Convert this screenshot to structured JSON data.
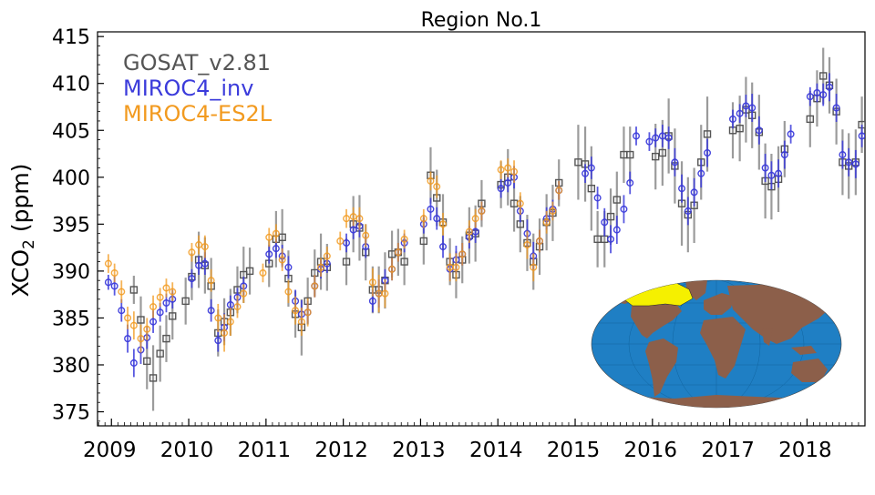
{
  "chart_data": {
    "type": "scatter",
    "title": "Region No.1",
    "xlabel": "",
    "ylabel_main": "XCO",
    "ylabel_sub": "2",
    "ylabel_unit": " (ppm)",
    "xlim": [
      2008.82,
      2018.75
    ],
    "ylim": [
      373.5,
      415.5
    ],
    "yticks": [
      375,
      380,
      385,
      390,
      395,
      400,
      405,
      410,
      415
    ],
    "xticks": [
      {
        "label": "2009",
        "pos": 2009.0
      },
      {
        "label": "2010",
        "pos": 2010.0
      },
      {
        "label": "2011",
        "pos": 2011.0
      },
      {
        "label": "2012",
        "pos": 2012.0
      },
      {
        "label": "2013",
        "pos": 2013.0
      },
      {
        "label": "2014",
        "pos": 2014.0
      },
      {
        "label": "2015",
        "pos": 2015.0
      },
      {
        "label": "2016",
        "pos": 2016.0
      },
      {
        "label": "2017",
        "pos": 2017.0
      },
      {
        "label": "2018",
        "pos": 2018.0
      }
    ],
    "legend": [
      {
        "label": "GOSAT_v2.81",
        "color": "#555555"
      },
      {
        "label": "MIROC4_inv",
        "color": "#3b3bdb"
      },
      {
        "label": "MIROC4-ES2L",
        "color": "#f29a1f"
      }
    ],
    "series": [
      {
        "name": "GOSAT_v2.81",
        "marker": "square",
        "color": "#555555",
        "x": [
          2009.29,
          2009.38,
          2009.46,
          2009.54,
          2009.63,
          2009.71,
          2009.79,
          2009.96,
          2010.04,
          2010.13,
          2010.21,
          2010.29,
          2010.38,
          2010.46,
          2010.54,
          2010.63,
          2010.71,
          2010.79,
          2011.04,
          2011.13,
          2011.21,
          2011.29,
          2011.38,
          2011.46,
          2011.54,
          2011.63,
          2011.71,
          2011.79,
          2012.04,
          2012.13,
          2012.21,
          2012.29,
          2012.38,
          2012.46,
          2012.54,
          2012.63,
          2012.71,
          2012.79,
          2013.04,
          2013.13,
          2013.21,
          2013.29,
          2013.38,
          2013.46,
          2013.54,
          2013.63,
          2013.71,
          2013.79,
          2014.04,
          2014.13,
          2014.21,
          2014.29,
          2014.38,
          2014.46,
          2014.54,
          2014.63,
          2014.71,
          2014.79,
          2015.04,
          2015.13,
          2015.21,
          2015.29,
          2015.38,
          2015.46,
          2015.54,
          2015.63,
          2015.71,
          2016.04,
          2016.13,
          2016.21,
          2016.29,
          2016.38,
          2016.46,
          2016.54,
          2016.63,
          2016.71,
          2017.04,
          2017.13,
          2017.21,
          2017.29,
          2017.38,
          2017.46,
          2017.54,
          2017.63,
          2017.71,
          2018.04,
          2018.13,
          2018.21,
          2018.29,
          2018.38,
          2018.46,
          2018.54,
          2018.63,
          2018.71
        ],
        "y": [
          388.0,
          384.8,
          380.4,
          378.6,
          381.2,
          382.8,
          385.2,
          386.8,
          389.4,
          391.2,
          390.6,
          388.4,
          383.4,
          384.6,
          385.6,
          388.0,
          389.6,
          390.0,
          390.8,
          393.4,
          393.6,
          389.2,
          385.4,
          384.0,
          386.8,
          389.8,
          391.0,
          390.4,
          391.0,
          395.0,
          394.6,
          392.0,
          388.0,
          388.0,
          389.0,
          391.8,
          392.0,
          391.0,
          393.2,
          400.2,
          397.8,
          395.2,
          391.0,
          389.6,
          391.2,
          393.8,
          394.0,
          397.2,
          399.2,
          400.0,
          397.2,
          395.0,
          393.0,
          391.0,
          392.6,
          395.2,
          396.2,
          399.4,
          401.6,
          401.4,
          398.8,
          393.4,
          393.4,
          395.8,
          397.6,
          402.4,
          402.4,
          402.2,
          402.6,
          404.4,
          401.2,
          397.2,
          396.0,
          397.0,
          401.6,
          404.6,
          405.0,
          405.2,
          407.2,
          406.6,
          404.8,
          399.6,
          399.0,
          399.8,
          403.0,
          406.2,
          408.4,
          410.8,
          409.8,
          407.0,
          401.6,
          401.2,
          401.6,
          405.6
        ],
        "err": [
          1.5,
          2.5,
          3.0,
          3.5,
          3.0,
          2.5,
          2.5,
          2.5,
          2.5,
          3.0,
          3.0,
          3.0,
          2.5,
          2.5,
          2.5,
          2.5,
          3.0,
          2.5,
          2.5,
          3.0,
          3.0,
          3.0,
          2.5,
          3.0,
          2.5,
          2.5,
          3.0,
          2.5,
          2.5,
          3.0,
          3.5,
          3.0,
          2.5,
          2.5,
          3.0,
          2.5,
          2.5,
          2.5,
          2.5,
          3.0,
          3.0,
          3.0,
          2.5,
          2.5,
          2.5,
          3.0,
          3.0,
          2.5,
          2.5,
          3.0,
          3.0,
          3.0,
          3.0,
          3.0,
          3.0,
          3.0,
          3.0,
          2.5,
          4.0,
          4.0,
          4.5,
          3.0,
          3.0,
          3.0,
          3.0,
          3.0,
          3.0,
          3.5,
          3.5,
          4.0,
          4.0,
          4.5,
          4.0,
          4.0,
          4.0,
          4.0,
          3.0,
          3.5,
          3.5,
          3.5,
          4.0,
          4.0,
          3.5,
          3.5,
          3.0,
          3.0,
          3.0,
          3.0,
          3.0,
          3.5,
          3.5,
          3.5,
          3.5,
          3.0
        ]
      },
      {
        "name": "MIROC4_inv",
        "marker": "circle",
        "color": "#3b3bdb",
        "x": [
          2008.96,
          2009.04,
          2009.13,
          2009.21,
          2009.29,
          2009.38,
          2009.46,
          2009.54,
          2009.63,
          2009.71,
          2009.79,
          2010.04,
          2010.13,
          2010.21,
          2010.29,
          2010.38,
          2010.46,
          2010.54,
          2010.63,
          2010.71,
          2011.04,
          2011.13,
          2011.21,
          2011.29,
          2011.38,
          2011.46,
          2011.54,
          2011.63,
          2011.71,
          2011.79,
          2012.04,
          2012.13,
          2012.21,
          2012.29,
          2012.38,
          2012.46,
          2012.54,
          2012.63,
          2012.71,
          2012.79,
          2013.04,
          2013.13,
          2013.21,
          2013.29,
          2013.38,
          2013.46,
          2013.54,
          2013.63,
          2013.71,
          2013.79,
          2014.04,
          2014.13,
          2014.21,
          2014.29,
          2014.38,
          2014.46,
          2014.54,
          2014.63,
          2014.71,
          2014.79,
          2015.13,
          2015.21,
          2015.29,
          2015.38,
          2015.46,
          2015.54,
          2015.63,
          2015.71,
          2015.79,
          2015.96,
          2016.04,
          2016.13,
          2016.21,
          2016.29,
          2016.38,
          2016.46,
          2016.54,
          2016.63,
          2016.71,
          2017.04,
          2017.13,
          2017.21,
          2017.29,
          2017.38,
          2017.46,
          2017.54,
          2017.63,
          2017.71,
          2017.79,
          2018.04,
          2018.13,
          2018.21,
          2018.29,
          2018.38,
          2018.46,
          2018.54,
          2018.63,
          2018.71
        ],
        "y": [
          388.8,
          388.4,
          385.8,
          382.8,
          380.2,
          381.6,
          382.9,
          384.6,
          385.6,
          386.6,
          387.0,
          389.2,
          390.6,
          390.8,
          385.8,
          382.6,
          384.0,
          386.4,
          387.2,
          388.4,
          391.8,
          392.4,
          391.6,
          390.4,
          386.8,
          385.4,
          385.6,
          388.4,
          390.2,
          390.8,
          393.0,
          394.4,
          394.8,
          392.6,
          386.8,
          387.6,
          389.0,
          390.2,
          392.0,
          393.0,
          395.0,
          396.6,
          395.6,
          392.6,
          390.2,
          391.2,
          391.8,
          393.6,
          394.2,
          396.4,
          398.8,
          399.4,
          400.0,
          396.4,
          394.0,
          391.6,
          393.2,
          395.6,
          396.6,
          398.6,
          400.4,
          401.0,
          397.8,
          395.2,
          393.4,
          394.4,
          396.6,
          399.4,
          404.4,
          403.8,
          404.2,
          404.4,
          404.2,
          401.6,
          398.8,
          396.4,
          398.4,
          400.4,
          402.6,
          406.2,
          406.8,
          407.6,
          407.4,
          405.0,
          401.0,
          400.2,
          400.4,
          402.4,
          404.6,
          408.6,
          409.0,
          408.8,
          409.6,
          407.4,
          402.4,
          401.6,
          401.4,
          404.4
        ],
        "err": [
          0.8,
          1.0,
          1.2,
          1.5,
          1.5,
          1.5,
          1.2,
          1.2,
          1.0,
          1.0,
          1.0,
          1.0,
          1.0,
          1.2,
          1.2,
          1.2,
          1.5,
          1.0,
          1.0,
          1.0,
          1.0,
          1.0,
          1.2,
          1.2,
          1.2,
          1.5,
          1.2,
          1.2,
          1.0,
          1.0,
          1.0,
          1.0,
          1.2,
          1.2,
          1.2,
          1.5,
          1.2,
          1.2,
          1.0,
          1.0,
          1.0,
          1.2,
          1.2,
          1.2,
          1.2,
          1.5,
          1.2,
          1.2,
          1.2,
          1.0,
          1.0,
          1.0,
          1.2,
          1.2,
          1.5,
          1.5,
          1.2,
          1.2,
          1.0,
          1.0,
          1.0,
          1.2,
          1.2,
          1.5,
          1.5,
          1.5,
          1.5,
          1.2,
          1.0,
          1.0,
          1.0,
          1.2,
          1.2,
          1.5,
          1.5,
          1.5,
          1.5,
          1.5,
          1.5,
          1.0,
          1.0,
          1.2,
          1.5,
          1.5,
          1.5,
          1.5,
          1.5,
          1.5,
          1.0,
          1.0,
          1.0,
          1.2,
          1.5,
          1.5,
          1.5,
          1.5,
          1.5,
          1.2
        ]
      },
      {
        "name": "MIROC4-ES2L",
        "marker": "circle",
        "color": "#f29a1f",
        "x": [
          2008.96,
          2009.04,
          2009.13,
          2009.21,
          2009.29,
          2009.38,
          2009.46,
          2009.54,
          2009.63,
          2009.71,
          2009.79,
          2010.04,
          2010.13,
          2010.21,
          2010.29,
          2010.38,
          2010.46,
          2010.54,
          2010.63,
          2010.71,
          2010.96,
          2011.04,
          2011.13,
          2011.21,
          2011.29,
          2011.38,
          2011.46,
          2011.54,
          2011.63,
          2011.71,
          2011.79,
          2011.96,
          2012.04,
          2012.13,
          2012.21,
          2012.29,
          2012.38,
          2012.46,
          2012.54,
          2012.63,
          2012.71,
          2012.79,
          2013.04,
          2013.13,
          2013.21,
          2013.29,
          2013.38,
          2013.46,
          2013.54,
          2013.63,
          2013.71,
          2013.79,
          2014.04,
          2014.13,
          2014.21,
          2014.29,
          2014.38,
          2014.46,
          2014.54,
          2014.63,
          2014.71,
          2014.79
        ],
        "y": [
          390.8,
          389.8,
          387.8,
          385.0,
          384.2,
          382.8,
          383.8,
          386.2,
          387.2,
          388.2,
          387.8,
          392.0,
          392.8,
          392.6,
          389.0,
          385.0,
          383.4,
          384.6,
          386.2,
          387.6,
          389.8,
          393.6,
          394.0,
          391.2,
          387.8,
          385.8,
          384.6,
          385.6,
          388.4,
          390.4,
          391.6,
          393.2,
          395.6,
          395.8,
          395.6,
          393.8,
          388.8,
          387.6,
          387.6,
          390.2,
          392.0,
          393.4,
          395.6,
          399.6,
          399.0,
          395.0,
          390.4,
          390.4,
          391.8,
          394.2,
          395.6,
          396.4,
          400.8,
          401.0,
          400.6,
          397.2,
          392.8,
          390.4,
          393.2,
          395.2,
          396.4,
          398.6
        ],
        "err": [
          1.0,
          1.0,
          1.2,
          1.2,
          1.5,
          1.5,
          1.2,
          1.2,
          1.0,
          1.0,
          1.0,
          1.0,
          1.0,
          1.2,
          1.2,
          1.5,
          2.0,
          1.5,
          1.2,
          1.0,
          1.0,
          1.0,
          1.0,
          1.2,
          1.2,
          1.5,
          1.5,
          1.5,
          1.2,
          1.0,
          1.0,
          1.0,
          1.0,
          1.0,
          1.2,
          1.2,
          1.5,
          2.0,
          1.5,
          1.2,
          1.0,
          1.0,
          1.0,
          1.0,
          1.2,
          1.2,
          1.5,
          1.5,
          1.2,
          1.2,
          1.0,
          1.0,
          1.0,
          1.0,
          1.2,
          1.2,
          1.5,
          1.5,
          1.2,
          1.2,
          1.0,
          1.0
        ]
      }
    ]
  },
  "inset_map": {
    "description_icon": "world-map-icon",
    "ocean_color": "#1f7fc4",
    "land_color": "#8c5f4a",
    "highlight_color": "#f5f000"
  }
}
